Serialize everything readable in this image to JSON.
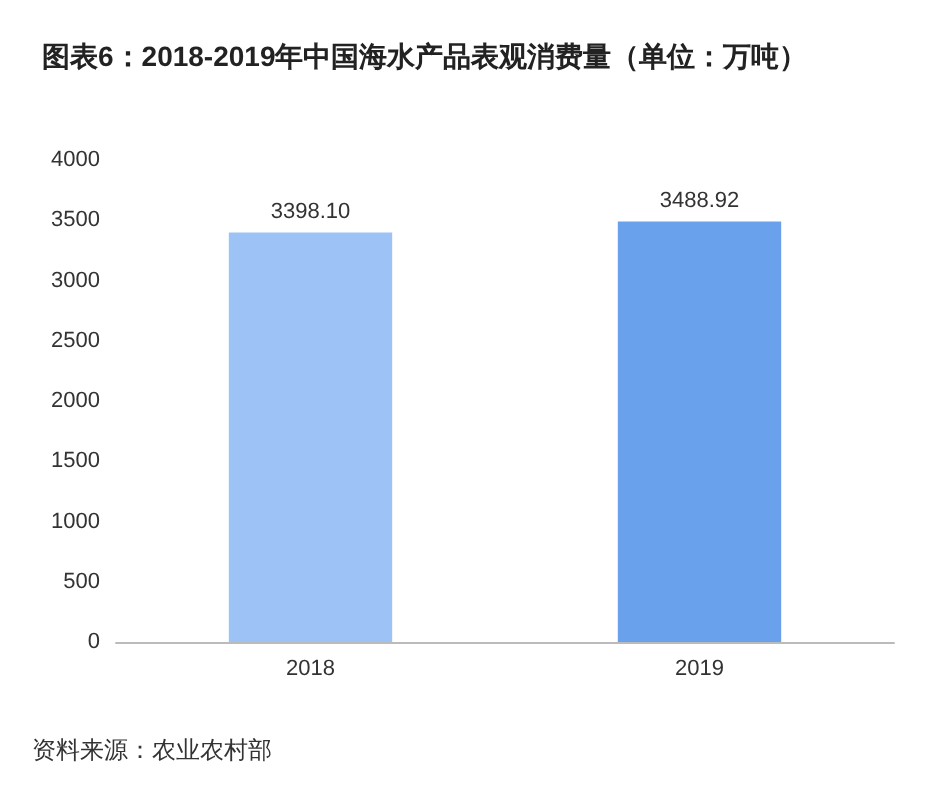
{
  "chart_data": {
    "type": "bar",
    "title": "图表6：2018-2019年中国海水产品表观消费量（单位：万吨）",
    "categories": [
      "2018",
      "2019"
    ],
    "values": [
      3398.1,
      3488.92
    ],
    "value_labels": [
      "3398.10",
      "3488.92"
    ],
    "colors": [
      "#9dc3f6",
      "#6aa1ec"
    ],
    "ylim": [
      0,
      4000
    ],
    "yticks": [
      0,
      500,
      1000,
      1500,
      2000,
      2500,
      3000,
      3500,
      4000
    ],
    "grid": false,
    "annotations": [
      "资料来源：农业农村部"
    ]
  }
}
